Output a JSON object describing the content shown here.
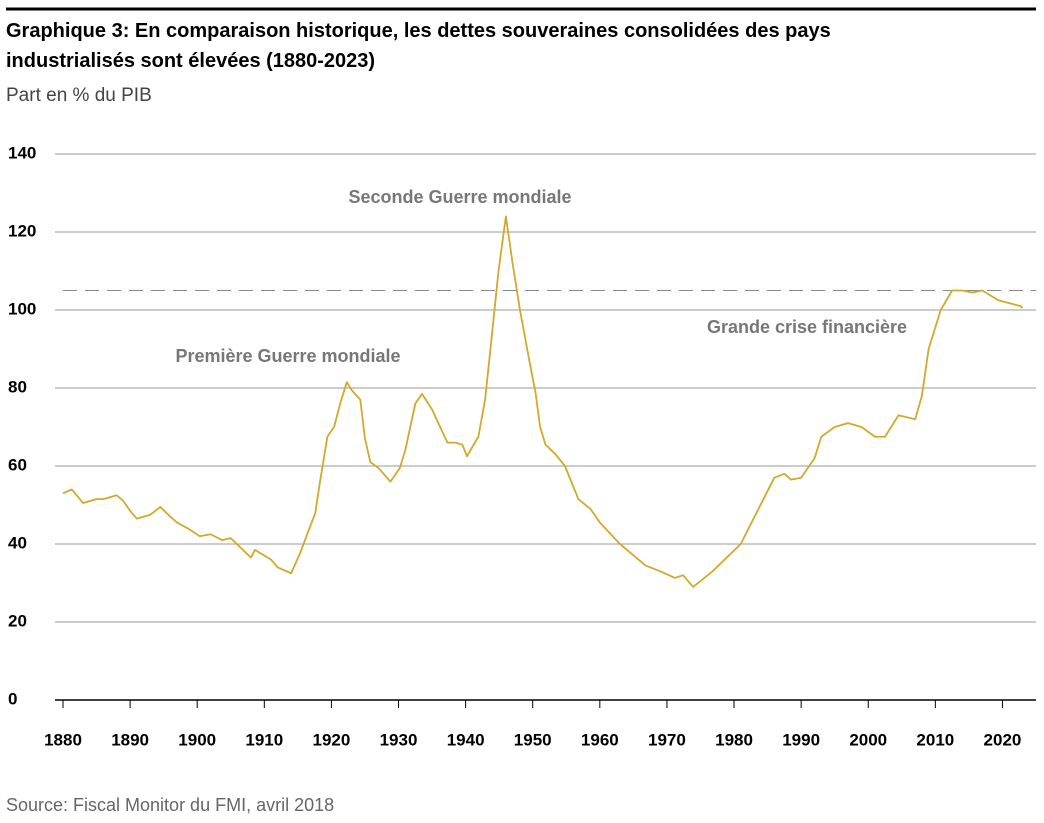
{
  "chart_data": {
    "type": "line",
    "title": "Graphique 3: En comparaison historique, les dettes souveraines consolidées des pays industrialisés sont élevées (1880-2023)",
    "title_lines": [
      "Graphique 3: En comparaison historique, les dettes souveraines consolidées des pays",
      "industrialisés sont élevées (1880-2023)"
    ],
    "subtitle": "Part en % du PIB",
    "source": "Source: Fiscal Monitor du FMI, avril 2018",
    "annotations": [
      "Seconde Guerre mondiale",
      "Première Guerre mondiale",
      "Grande crise financière"
    ],
    "reference_line": 105,
    "color": "#d1a92c",
    "grid": true,
    "xlim": [
      1880,
      2025
    ],
    "xticks": [
      1880,
      1890,
      1900,
      1910,
      1920,
      1930,
      1940,
      1950,
      1960,
      1970,
      1980,
      1990,
      2000,
      2010,
      2020
    ],
    "ylim": [
      0,
      140
    ],
    "yticks": [
      0,
      20,
      40,
      60,
      80,
      100,
      120,
      140
    ],
    "x": [
      1880,
      1881.3,
      1883,
      1885,
      1886,
      1888,
      1889,
      1890,
      1891,
      1893,
      1894.5,
      1896,
      1897,
      1898.6,
      1900.4,
      1902,
      1903.7,
      1905,
      1908,
      1908.6,
      1911,
      1912,
      1914,
      1915.3,
      1916.5,
      1917.6,
      1918.3,
      1919.4,
      1920.4,
      1921.3,
      1922.3,
      1923,
      1924.3,
      1925,
      1925.8,
      1927,
      1928.8,
      1930.2,
      1931,
      1932.5,
      1933.5,
      1935,
      1936.2,
      1937.3,
      1938.4,
      1939.5,
      1940.2,
      1941.9,
      1942.9,
      1943.7,
      1944.9,
      1946,
      1947,
      1948.1,
      1949.6,
      1950.4,
      1951.1,
      1951.9,
      1953.4,
      1954.8,
      1956.8,
      1958.6,
      1960,
      1963,
      1966.8,
      1969,
      1971.2,
      1972.4,
      1973.9,
      1975,
      1976.8,
      1981,
      1986,
      1987.5,
      1988.5,
      1990,
      1992,
      1993,
      1995,
      1997,
      1999,
      2001,
      2002.5,
      2004.5,
      2007,
      2008,
      2009,
      2010.8,
      2012.5,
      2014,
      2015.5,
      2017,
      2019.4,
      2022.7,
      2023
    ],
    "values": [
      53,
      54,
      50.5,
      51.5,
      51.5,
      52.5,
      51,
      48.5,
      46.5,
      47.5,
      49.5,
      47,
      45.5,
      44,
      42,
      42.5,
      41,
      41.5,
      36.5,
      38.5,
      36,
      34,
      32.5,
      37.5,
      43,
      48,
      56,
      67.5,
      70,
      76,
      81.5,
      79.5,
      77,
      67,
      61,
      59.5,
      56,
      59.5,
      64,
      76,
      78.5,
      74.5,
      70,
      66,
      66,
      65.5,
      62.5,
      67.5,
      77,
      90,
      110,
      124,
      112,
      100,
      86,
      79,
      70,
      65.5,
      63,
      60,
      51.5,
      49,
      45.5,
      40,
      34.5,
      33,
      31.3,
      32,
      29,
      30.5,
      33,
      40,
      57,
      58,
      56.5,
      57,
      62,
      67.5,
      70,
      71,
      70,
      67.5,
      67.5,
      73,
      72,
      78,
      90,
      100,
      105,
      105,
      104.5,
      105,
      102.5,
      101,
      100.5
    ]
  }
}
